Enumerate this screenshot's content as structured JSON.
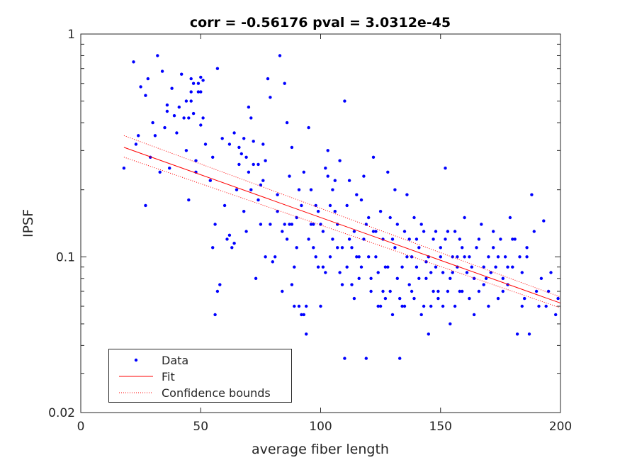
{
  "chart_data": {
    "type": "scatter",
    "title": "corr = -0.56176 pval = 3.0312e-45",
    "xlabel": "average fiber length",
    "ylabel": "IPSF",
    "xlim": [
      0,
      200
    ],
    "ylim": [
      0.02,
      1
    ],
    "yscale": "log",
    "xticks": [
      "0",
      "50",
      "100",
      "150",
      "200"
    ],
    "yticks": [
      "0.02",
      "0.1",
      "1"
    ],
    "legend_position": "bottom-left",
    "grid": false,
    "colors": {
      "data": "#0000ff",
      "fit": "#ff0000",
      "bounds": "#ff0000"
    },
    "series": [
      {
        "name": "Data",
        "points": [
          [
            18,
            0.25
          ],
          [
            22,
            0.75
          ],
          [
            23,
            0.32
          ],
          [
            24,
            0.35
          ],
          [
            25,
            0.58
          ],
          [
            27,
            0.17
          ],
          [
            27,
            0.53
          ],
          [
            28,
            0.63
          ],
          [
            29,
            0.28
          ],
          [
            30,
            0.4
          ],
          [
            31,
            0.35
          ],
          [
            32,
            0.8
          ],
          [
            33,
            0.24
          ],
          [
            34,
            0.68
          ],
          [
            35,
            0.38
          ],
          [
            36,
            0.45
          ],
          [
            36,
            0.48
          ],
          [
            37,
            0.25
          ],
          [
            38,
            0.57
          ],
          [
            39,
            0.43
          ],
          [
            40,
            0.36
          ],
          [
            41,
            0.47
          ],
          [
            42,
            0.66
          ],
          [
            43,
            0.42
          ],
          [
            44,
            0.3
          ],
          [
            45,
            0.42
          ],
          [
            45,
            0.18
          ],
          [
            46,
            0.63
          ],
          [
            46,
            0.55
          ],
          [
            47,
            0.6
          ],
          [
            47,
            0.44
          ],
          [
            48,
            0.27
          ],
          [
            48,
            0.24
          ],
          [
            49,
            0.55
          ],
          [
            50,
            0.55
          ],
          [
            50,
            0.64
          ],
          [
            50,
            0.39
          ],
          [
            51,
            0.42
          ],
          [
            52,
            0.32
          ],
          [
            54,
            0.22
          ],
          [
            55,
            0.28
          ],
          [
            55,
            0.11
          ],
          [
            56,
            0.055
          ],
          [
            56,
            0.14
          ],
          [
            57,
            0.7
          ],
          [
            57,
            0.07
          ],
          [
            58,
            0.075
          ],
          [
            59,
            0.34
          ],
          [
            60,
            0.17
          ],
          [
            61,
            0.12
          ],
          [
            62,
            0.125
          ],
          [
            63,
            0.11
          ],
          [
            64,
            0.115
          ],
          [
            65,
            0.2
          ],
          [
            66,
            0.26
          ],
          [
            67,
            0.29
          ],
          [
            68,
            0.16
          ],
          [
            69,
            0.13
          ],
          [
            70,
            0.24
          ],
          [
            70,
            0.47
          ],
          [
            71,
            0.2
          ],
          [
            71,
            0.42
          ],
          [
            72,
            0.33
          ],
          [
            73,
            0.08
          ],
          [
            74,
            0.26
          ],
          [
            75,
            0.21
          ],
          [
            76,
            0.22
          ],
          [
            77,
            0.1
          ],
          [
            78,
            0.63
          ],
          [
            79,
            0.52
          ],
          [
            80,
            0.095
          ],
          [
            81,
            0.1
          ],
          [
            82,
            0.16
          ],
          [
            83,
            0.8
          ],
          [
            84,
            0.07
          ],
          [
            85,
            0.6
          ],
          [
            86,
            0.4
          ],
          [
            87,
            0.23
          ],
          [
            88,
            0.14
          ],
          [
            88,
            0.075
          ],
          [
            89,
            0.09
          ],
          [
            90,
            0.11
          ],
          [
            91,
            0.2
          ],
          [
            92,
            0.055
          ],
          [
            93,
            0.055
          ],
          [
            94,
            0.045
          ],
          [
            95,
            0.38
          ],
          [
            96,
            0.2
          ],
          [
            97,
            0.14
          ],
          [
            98,
            0.17
          ],
          [
            99,
            0.09
          ],
          [
            100,
            0.14
          ],
          [
            101,
            0.13
          ],
          [
            102,
            0.25
          ],
          [
            103,
            0.23
          ],
          [
            104,
            0.1
          ],
          [
            105,
            0.2
          ],
          [
            106,
            0.16
          ],
          [
            107,
            0.11
          ],
          [
            108,
            0.085
          ],
          [
            109,
            0.075
          ],
          [
            110,
            0.035
          ],
          [
            111,
            0.17
          ],
          [
            112,
            0.12
          ],
          [
            113,
            0.11
          ],
          [
            114,
            0.065
          ],
          [
            115,
            0.19
          ],
          [
            116,
            0.1
          ],
          [
            117,
            0.09
          ],
          [
            118,
            0.23
          ],
          [
            119,
            0.14
          ],
          [
            120,
            0.1
          ],
          [
            121,
            0.08
          ],
          [
            122,
            0.28
          ],
          [
            123,
            0.13
          ],
          [
            124,
            0.085
          ],
          [
            125,
            0.06
          ],
          [
            126,
            0.07
          ],
          [
            127,
            0.065
          ],
          [
            128,
            0.09
          ],
          [
            129,
            0.15
          ],
          [
            130,
            0.12
          ],
          [
            131,
            0.2
          ],
          [
            132,
            0.08
          ],
          [
            133,
            0.065
          ],
          [
            134,
            0.09
          ],
          [
            135,
            0.06
          ],
          [
            136,
            0.1
          ],
          [
            137,
            0.12
          ],
          [
            138,
            0.07
          ],
          [
            139,
            0.15
          ],
          [
            140,
            0.09
          ],
          [
            141,
            0.11
          ],
          [
            142,
            0.055
          ],
          [
            143,
            0.13
          ],
          [
            144,
            0.08
          ],
          [
            145,
            0.1
          ],
          [
            146,
            0.06
          ],
          [
            147,
            0.12
          ],
          [
            148,
            0.09
          ],
          [
            149,
            0.07
          ],
          [
            150,
            0.11
          ],
          [
            151,
            0.085
          ],
          [
            152,
            0.25
          ],
          [
            153,
            0.13
          ],
          [
            154,
            0.08
          ],
          [
            155,
            0.1
          ],
          [
            156,
            0.06
          ],
          [
            157,
            0.09
          ],
          [
            158,
            0.12
          ],
          [
            159,
            0.07
          ],
          [
            160,
            0.15
          ],
          [
            161,
            0.085
          ],
          [
            162,
            0.1
          ],
          [
            163,
            0.09
          ],
          [
            164,
            0.08
          ],
          [
            165,
            0.11
          ],
          [
            166,
            0.07
          ],
          [
            167,
            0.14
          ],
          [
            168,
            0.09
          ],
          [
            169,
            0.08
          ],
          [
            170,
            0.1
          ],
          [
            171,
            0.085
          ],
          [
            172,
            0.11
          ],
          [
            173,
            0.09
          ],
          [
            174,
            0.065
          ],
          [
            175,
            0.12
          ],
          [
            176,
            0.08
          ],
          [
            177,
            0.1
          ],
          [
            178,
            0.075
          ],
          [
            179,
            0.15
          ],
          [
            180,
            0.09
          ],
          [
            181,
            0.12
          ],
          [
            182,
            0.045
          ],
          [
            183,
            0.1
          ],
          [
            184,
            0.085
          ],
          [
            185,
            0.065
          ],
          [
            186,
            0.11
          ],
          [
            187,
            0.045
          ],
          [
            188,
            0.19
          ],
          [
            189,
            0.13
          ],
          [
            190,
            0.07
          ],
          [
            191,
            0.06
          ],
          [
            192,
            0.08
          ],
          [
            193,
            0.145
          ],
          [
            194,
            0.06
          ],
          [
            195,
            0.07
          ],
          [
            196,
            0.085
          ],
          [
            198,
            0.055
          ],
          [
            199,
            0.065
          ]
        ]
      },
      {
        "name": "Fit",
        "line": [
          [
            18,
            0.31
          ],
          [
            200,
            0.062
          ]
        ]
      },
      {
        "name": "Confidence bounds",
        "upper": [
          [
            18,
            0.35
          ],
          [
            200,
            0.066
          ]
        ],
        "lower": [
          [
            18,
            0.28
          ],
          [
            200,
            0.059
          ]
        ]
      }
    ],
    "extra_points": [
      [
        44,
        0.5
      ],
      [
        46,
        0.5
      ],
      [
        49,
        0.6
      ],
      [
        51,
        0.62
      ],
      [
        62,
        0.32
      ],
      [
        64,
        0.36
      ],
      [
        66,
        0.31
      ],
      [
        68,
        0.34
      ],
      [
        69,
        0.28
      ],
      [
        72,
        0.26
      ],
      [
        74,
        0.18
      ],
      [
        75,
        0.14
      ],
      [
        76,
        0.32
      ],
      [
        77,
        0.27
      ],
      [
        79,
        0.14
      ],
      [
        82,
        0.19
      ],
      [
        84,
        0.13
      ],
      [
        85,
        0.14
      ],
      [
        86,
        0.12
      ],
      [
        87,
        0.14
      ],
      [
        88,
        0.31
      ],
      [
        89,
        0.06
      ],
      [
        90,
        0.15
      ],
      [
        91,
        0.06
      ],
      [
        92,
        0.17
      ],
      [
        93,
        0.24
      ],
      [
        94,
        0.06
      ],
      [
        95,
        0.12
      ],
      [
        96,
        0.14
      ],
      [
        97,
        0.11
      ],
      [
        98,
        0.1
      ],
      [
        99,
        0.16
      ],
      [
        100,
        0.06
      ],
      [
        101,
        0.09
      ],
      [
        102,
        0.085
      ],
      [
        103,
        0.3
      ],
      [
        104,
        0.17
      ],
      [
        105,
        0.12
      ],
      [
        106,
        0.22
      ],
      [
        107,
        0.14
      ],
      [
        108,
        0.27
      ],
      [
        109,
        0.11
      ],
      [
        110,
        0.5
      ],
      [
        111,
        0.09
      ],
      [
        112,
        0.22
      ],
      [
        113,
        0.075
      ],
      [
        114,
        0.13
      ],
      [
        115,
        0.1
      ],
      [
        116,
        0.08
      ],
      [
        117,
        0.18
      ],
      [
        118,
        0.12
      ],
      [
        119,
        0.035
      ],
      [
        120,
        0.15
      ],
      [
        121,
        0.07
      ],
      [
        122,
        0.13
      ],
      [
        123,
        0.1
      ],
      [
        124,
        0.06
      ],
      [
        125,
        0.16
      ],
      [
        126,
        0.12
      ],
      [
        127,
        0.09
      ],
      [
        128,
        0.24
      ],
      [
        129,
        0.07
      ],
      [
        130,
        0.055
      ],
      [
        131,
        0.11
      ],
      [
        132,
        0.14
      ],
      [
        133,
        0.035
      ],
      [
        134,
        0.06
      ],
      [
        135,
        0.13
      ],
      [
        136,
        0.19
      ],
      [
        137,
        0.075
      ],
      [
        138,
        0.1
      ],
      [
        139,
        0.065
      ],
      [
        140,
        0.12
      ],
      [
        141,
        0.08
      ],
      [
        142,
        0.14
      ],
      [
        143,
        0.06
      ],
      [
        144,
        0.095
      ],
      [
        145,
        0.045
      ],
      [
        146,
        0.085
      ],
      [
        147,
        0.07
      ],
      [
        148,
        0.13
      ],
      [
        149,
        0.065
      ],
      [
        150,
        0.1
      ],
      [
        151,
        0.06
      ],
      [
        152,
        0.12
      ],
      [
        153,
        0.07
      ],
      [
        154,
        0.05
      ],
      [
        155,
        0.085
      ],
      [
        156,
        0.13
      ],
      [
        157,
        0.1
      ],
      [
        158,
        0.07
      ],
      [
        159,
        0.11
      ],
      [
        160,
        0.1
      ],
      [
        162,
        0.065
      ],
      [
        164,
        0.055
      ],
      [
        166,
        0.12
      ],
      [
        168,
        0.075
      ],
      [
        170,
        0.06
      ],
      [
        172,
        0.13
      ],
      [
        174,
        0.1
      ],
      [
        176,
        0.07
      ],
      [
        178,
        0.09
      ],
      [
        180,
        0.12
      ],
      [
        184,
        0.06
      ],
      [
        186,
        0.1
      ]
    ]
  },
  "legend": {
    "data_label": "Data",
    "fit_label": "Fit",
    "bounds_label": "Confidence bounds"
  }
}
